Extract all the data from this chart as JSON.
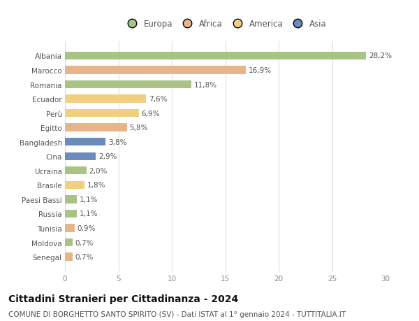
{
  "categories": [
    "Albania",
    "Marocco",
    "Romania",
    "Ecuador",
    "Perù",
    "Egitto",
    "Bangladesh",
    "Cina",
    "Ucraina",
    "Brasile",
    "Paesi Bassi",
    "Russia",
    "Tunisia",
    "Moldova",
    "Senegal"
  ],
  "values": [
    28.2,
    16.9,
    11.8,
    7.6,
    6.9,
    5.8,
    3.8,
    2.9,
    2.0,
    1.8,
    1.1,
    1.1,
    0.9,
    0.7,
    0.7
  ],
  "labels": [
    "28,2%",
    "16,9%",
    "11,8%",
    "7,6%",
    "6,9%",
    "5,8%",
    "3,8%",
    "2,9%",
    "2,0%",
    "1,8%",
    "1,1%",
    "1,1%",
    "0,9%",
    "0,7%",
    "0,7%"
  ],
  "colors": [
    "#a8c484",
    "#e8b48a",
    "#a8c484",
    "#f0d080",
    "#f0d080",
    "#e8b48a",
    "#6b8cba",
    "#6b8cba",
    "#a8c484",
    "#f0d080",
    "#a8c484",
    "#a8c484",
    "#e8b48a",
    "#a8c484",
    "#e8b48a"
  ],
  "legend_labels": [
    "Europa",
    "Africa",
    "America",
    "Asia"
  ],
  "legend_colors": [
    "#a8c484",
    "#e8b48a",
    "#f0d080",
    "#6b8cba"
  ],
  "title": "Cittadini Stranieri per Cittadinanza - 2024",
  "subtitle": "COMUNE DI BORGHETTO SANTO SPIRITO (SV) - Dati ISTAT al 1° gennaio 2024 - TUTTITALIA.IT",
  "xlim": [
    0,
    30
  ],
  "xticks": [
    0,
    5,
    10,
    15,
    20,
    25,
    30
  ],
  "background_color": "#ffffff",
  "grid_color": "#dddddd",
  "bar_height": 0.55,
  "title_fontsize": 10,
  "subtitle_fontsize": 7.5,
  "label_fontsize": 7.5,
  "tick_fontsize": 7.5,
  "legend_fontsize": 8.5
}
